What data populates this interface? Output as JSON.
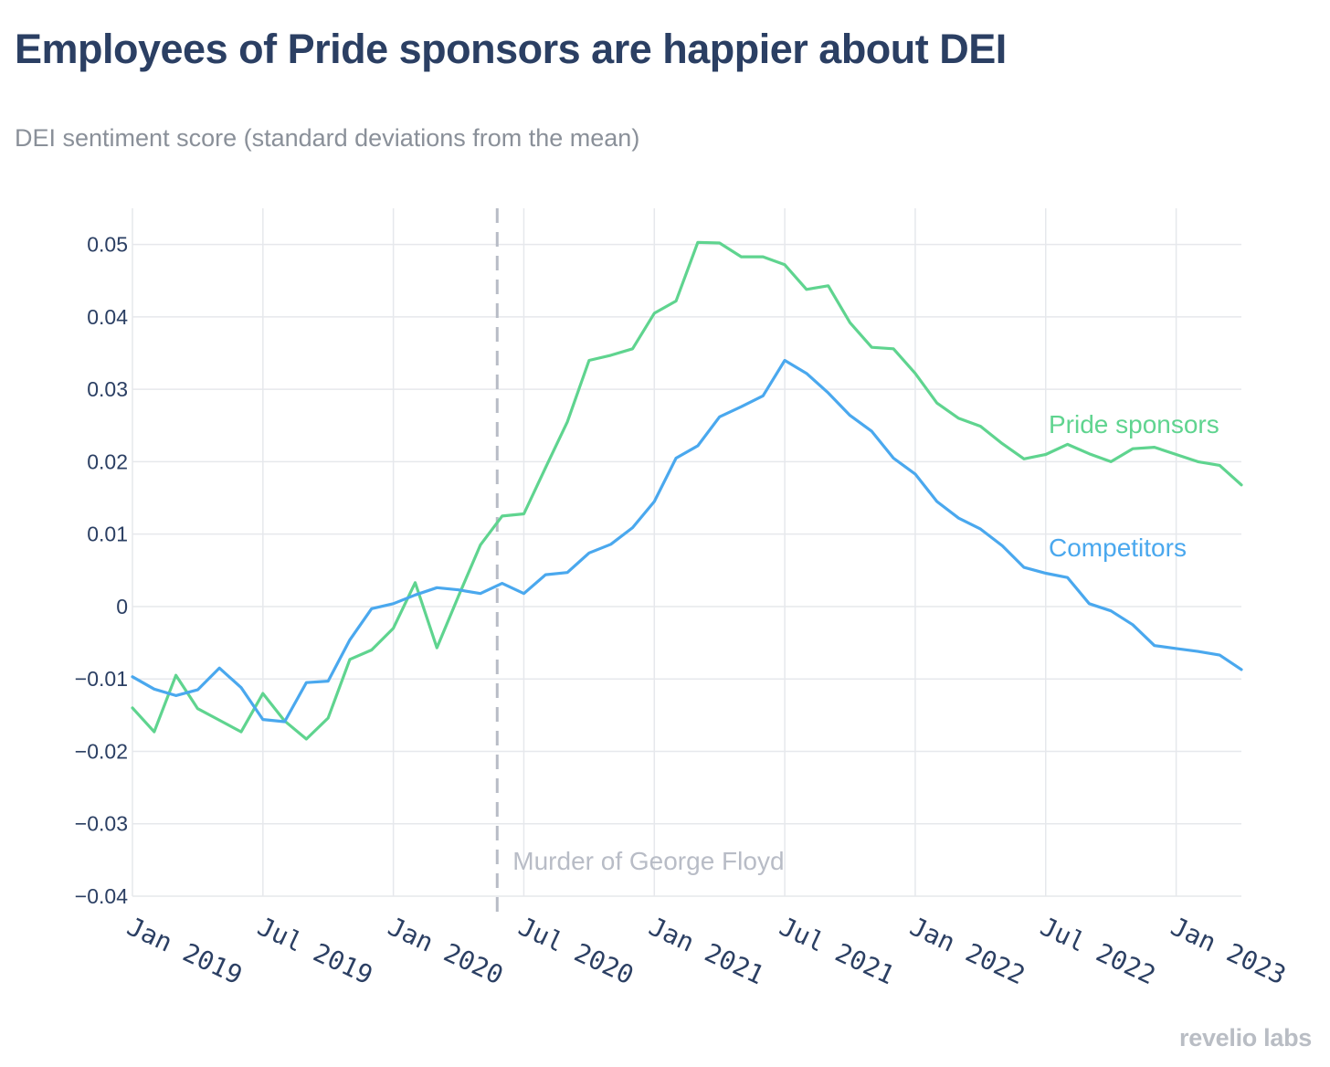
{
  "title": "Employees of Pride sponsors are happier about DEI",
  "subtitle": "DEI sentiment score (standard deviations from the mean)",
  "brand": "revelio labs",
  "chart_data": {
    "type": "line",
    "title": "Employees of Pride sponsors are happier about DEI",
    "ylabel": "DEI sentiment score (standard deviations from the mean)",
    "xlabel": "",
    "ylim": [
      -0.04,
      0.055
    ],
    "x_start": "2019-01",
    "x_end": "2023-04",
    "x_ticks": [
      {
        "label": "Jan 2019",
        "date": "2019-01"
      },
      {
        "label": "Jul 2019",
        "date": "2019-07"
      },
      {
        "label": "Jan 2020",
        "date": "2020-01"
      },
      {
        "label": "Jul 2020",
        "date": "2020-07"
      },
      {
        "label": "Jan 2021",
        "date": "2021-01"
      },
      {
        "label": "Jul 2021",
        "date": "2021-07"
      },
      {
        "label": "Jan 2022",
        "date": "2022-01"
      },
      {
        "label": "Jul 2022",
        "date": "2022-07"
      },
      {
        "label": "Jan 2023",
        "date": "2023-01"
      }
    ],
    "y_ticks": [
      {
        "label": "0.05",
        "value": 0.05
      },
      {
        "label": "0.04",
        "value": 0.04
      },
      {
        "label": "0.03",
        "value": 0.03
      },
      {
        "label": "0.02",
        "value": 0.02
      },
      {
        "label": "0.01",
        "value": 0.01
      },
      {
        "label": "0",
        "value": 0
      },
      {
        "label": "−0.01",
        "value": -0.01
      },
      {
        "label": "−0.02",
        "value": -0.02
      },
      {
        "label": "−0.03",
        "value": -0.03
      },
      {
        "label": "−0.04",
        "value": -0.04
      }
    ],
    "grid": true,
    "legend": "inline labels at right",
    "series": [
      {
        "name": "Pride sponsors",
        "color": "#5fd48f",
        "values": [
          -0.014,
          -0.0173,
          -0.0095,
          -0.0141,
          -0.0157,
          -0.0173,
          -0.012,
          -0.0158,
          -0.0183,
          -0.0154,
          -0.0073,
          -0.006,
          -0.003,
          0.0033,
          -0.0057,
          0.0015,
          0.0085,
          0.0125,
          0.0128,
          0.0192,
          0.0255,
          0.034,
          0.0347,
          0.0356,
          0.0405,
          0.0422,
          0.0503,
          0.0502,
          0.0483,
          0.0483,
          0.0472,
          0.0438,
          0.0443,
          0.0392,
          0.0358,
          0.0356,
          0.0322,
          0.0281,
          0.026,
          0.0249,
          0.0225,
          0.0204,
          0.021,
          0.0224,
          0.0211,
          0.02,
          0.0218,
          0.022,
          0.021,
          0.02,
          0.0195,
          0.0168
        ]
      },
      {
        "name": "Competitors",
        "color": "#4aa8ee",
        "values": [
          -0.0097,
          -0.0114,
          -0.0123,
          -0.0115,
          -0.0085,
          -0.0112,
          -0.0156,
          -0.0159,
          -0.0105,
          -0.0103,
          -0.0046,
          -0.0003,
          0.0004,
          0.0016,
          0.0026,
          0.0023,
          0.0018,
          0.0032,
          0.0018,
          0.0044,
          0.0047,
          0.0074,
          0.0086,
          0.0109,
          0.0145,
          0.0205,
          0.0222,
          0.0262,
          0.0276,
          0.0291,
          0.034,
          0.0322,
          0.0295,
          0.0264,
          0.0242,
          0.0205,
          0.0183,
          0.0145,
          0.0122,
          0.0107,
          0.0084,
          0.0054,
          0.0046,
          0.004,
          0.0004,
          -0.0006,
          -0.0025,
          -0.0054,
          -0.0058,
          -0.0062,
          -0.0067,
          -0.0087
        ]
      }
    ],
    "annotations": [
      {
        "text": "Murder of George Floyd",
        "date": "2020-05-25",
        "style": "dashed vertical line"
      }
    ]
  }
}
